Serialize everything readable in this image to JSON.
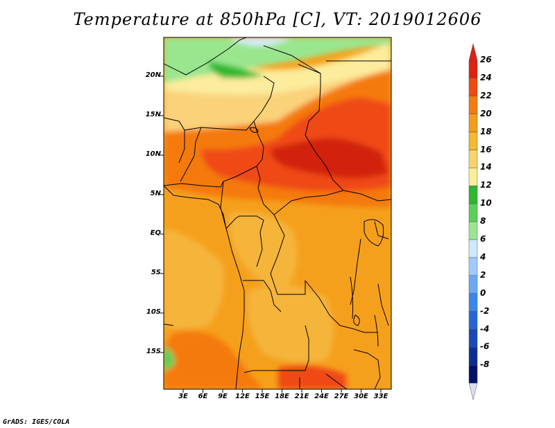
{
  "title": "Temperature at 850hPa [C], VT: 2019012606",
  "credit": "GrADS: IGES/COLA",
  "lat_ticks": [
    "20N",
    "15N",
    "10N",
    "5N",
    "EQ",
    "5S",
    "10S",
    "15S"
  ],
  "lon_ticks": [
    "3E",
    "6E",
    "9E",
    "12E",
    "15E",
    "18E",
    "21E",
    "24E",
    "27E",
    "30E",
    "33E"
  ],
  "colorbar": {
    "labels": [
      "26",
      "24",
      "22",
      "20",
      "18",
      "16",
      "14",
      "12",
      "10",
      "8",
      "6",
      "4",
      "2",
      "0",
      "-2",
      "-4",
      "-6",
      "-8"
    ],
    "colors": [
      "#e02010",
      "#f04a10",
      "#f57a10",
      "#f59c18",
      "#f5b82e",
      "#fad46a",
      "#fcee98",
      "#2db82d",
      "#5ad05a",
      "#9ae68f",
      "#cfe8ff",
      "#9fcbff",
      "#6ba9f5",
      "#3a87ea",
      "#2566d6",
      "#1848b8",
      "#0c2d94",
      "#03106a"
    ]
  },
  "map_colors": {
    "very_hot": "#d2240c",
    "hot": "#ef4a12",
    "warm": "#f47a10",
    "mild": "#f5a01c",
    "cool": "#f5b53a",
    "pale": "#fad27a",
    "cream": "#fcec9c",
    "green": "#5ad05a",
    "light_green": "#9ae68f",
    "dark_green": "#2db82d",
    "pale_blue": "#d8ecff",
    "border": "#000000"
  }
}
